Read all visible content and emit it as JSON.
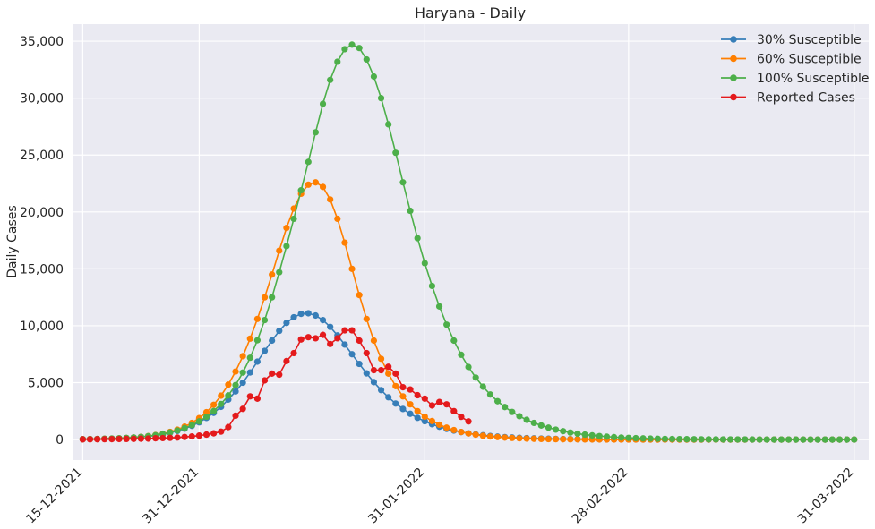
{
  "chart_data": {
    "type": "line",
    "title": "Haryana - Daily",
    "xlabel": "",
    "ylabel": "Daily Cases",
    "x_start": "2021-12-15",
    "x_end": "2022-03-31",
    "ylim": [
      -1800,
      36500
    ],
    "x_ticks": [
      "15-12-2021",
      "31-12-2021",
      "31-01-2022",
      "28-02-2022",
      "31-03-2022"
    ],
    "y_ticks": [
      "0",
      "5,000",
      "10,000",
      "15,000",
      "20,000",
      "25,000",
      "30,000",
      "35,000"
    ],
    "grid": true,
    "legend_position": "top-right",
    "series": [
      {
        "name": "30% Susceptible",
        "color": "#377eb8",
        "start": "2021-12-15",
        "values": [
          30,
          40,
          50,
          70,
          90,
          110,
          140,
          180,
          230,
          290,
          370,
          470,
          600,
          760,
          960,
          1210,
          1520,
          1900,
          2350,
          2880,
          3520,
          4230,
          5000,
          5900,
          6850,
          7800,
          8700,
          9550,
          10250,
          10750,
          11050,
          11100,
          10900,
          10500,
          9900,
          9150,
          8350,
          7500,
          6650,
          5820,
          5050,
          4350,
          3720,
          3170,
          2690,
          2270,
          1910,
          1610,
          1350,
          1130,
          940,
          790,
          660,
          550,
          460,
          380,
          320,
          265,
          220,
          185,
          155,
          130,
          108,
          90,
          75,
          62,
          52,
          43,
          36,
          30,
          25,
          21,
          17,
          14,
          12,
          10,
          8,
          7,
          6,
          5,
          4,
          3,
          3,
          2,
          2,
          2,
          1,
          1,
          1,
          1,
          1,
          1,
          0,
          0,
          0,
          0,
          0,
          0,
          0,
          0,
          0,
          0,
          0,
          0,
          0,
          0,
          0
        ]
      },
      {
        "name": "60% Susceptible",
        "color": "#ff7f00",
        "start": "2021-12-15",
        "values": [
          30,
          40,
          50,
          70,
          90,
          110,
          140,
          180,
          240,
          310,
          400,
          520,
          680,
          880,
          1140,
          1470,
          1890,
          2410,
          3060,
          3860,
          4830,
          5980,
          7330,
          8870,
          10600,
          12500,
          14500,
          16600,
          18600,
          20300,
          21600,
          22400,
          22600,
          22200,
          21100,
          19400,
          17300,
          15000,
          12700,
          10600,
          8700,
          7100,
          5800,
          4700,
          3800,
          3100,
          2500,
          2020,
          1630,
          1310,
          1050,
          840,
          670,
          540,
          430,
          340,
          270,
          220,
          175,
          140,
          110,
          88,
          70,
          56,
          45,
          36,
          28,
          23,
          18,
          14,
          11,
          9,
          7,
          6,
          5,
          4,
          3,
          2,
          2,
          2,
          1,
          1,
          1,
          1,
          1,
          0,
          0,
          0,
          0,
          0,
          0,
          0,
          0,
          0,
          0,
          0,
          0,
          0,
          0,
          0,
          0,
          0,
          0,
          0,
          0,
          0,
          0
        ]
      },
      {
        "name": "100% Susceptible",
        "color": "#4daf4a",
        "start": "2021-12-15",
        "values": [
          30,
          40,
          50,
          70,
          90,
          110,
          140,
          180,
          230,
          300,
          380,
          490,
          630,
          800,
          1010,
          1270,
          1600,
          2010,
          2510,
          3130,
          3880,
          4790,
          5890,
          7190,
          8730,
          10500,
          12500,
          14700,
          17000,
          19400,
          21900,
          24400,
          27000,
          29500,
          31600,
          33200,
          34300,
          34700,
          34400,
          33400,
          31900,
          30000,
          27700,
          25200,
          22600,
          20100,
          17700,
          15500,
          13500,
          11700,
          10100,
          8700,
          7450,
          6380,
          5450,
          4650,
          3960,
          3370,
          2860,
          2430,
          2060,
          1740,
          1470,
          1240,
          1050,
          880,
          740,
          620,
          520,
          440,
          370,
          310,
          260,
          215,
          180,
          150,
          125,
          105,
          88,
          73,
          61,
          51,
          43,
          36,
          30,
          25,
          21,
          17,
          14,
          12,
          10,
          8,
          7,
          6,
          5,
          4,
          3,
          3,
          2,
          2,
          2,
          1,
          1,
          1,
          1,
          1,
          1
        ]
      },
      {
        "name": "Reported Cases",
        "color": "#e41a1c",
        "start": "2021-12-15",
        "values": [
          20,
          25,
          30,
          35,
          40,
          50,
          55,
          65,
          80,
          90,
          120,
          130,
          150,
          180,
          230,
          280,
          350,
          440,
          550,
          700,
          1100,
          2100,
          2700,
          3800,
          3600,
          5200,
          5800,
          5700,
          6900,
          7600,
          8800,
          9000,
          8900,
          9200,
          8400,
          8900,
          9600,
          9600,
          8700,
          7600,
          6100,
          6100,
          6400,
          5800,
          4600,
          4400,
          3900,
          3600,
          3000,
          3300,
          3100,
          2500,
          2000,
          1600
        ]
      }
    ]
  }
}
